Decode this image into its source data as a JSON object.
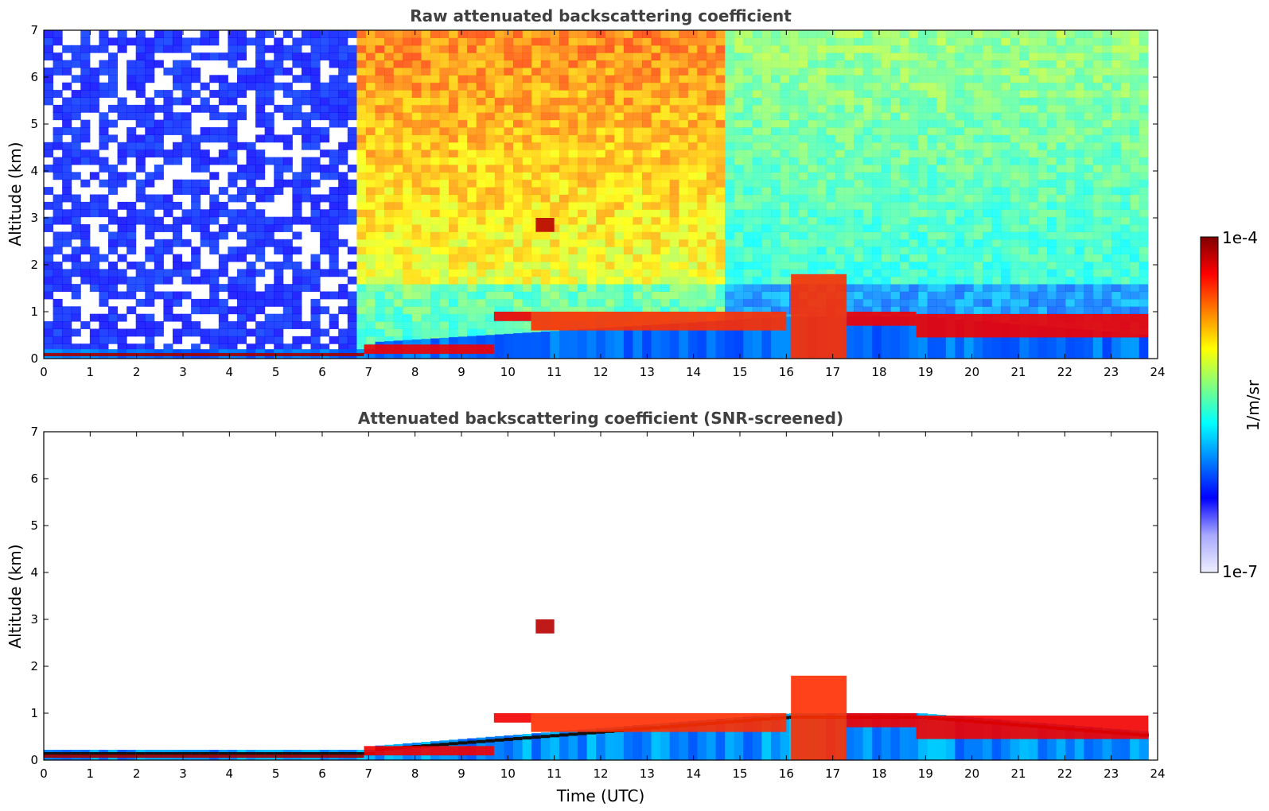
{
  "chart_data": [
    {
      "type": "heatmap",
      "title": "Raw attenuated backscattering coefficient",
      "xlabel": "",
      "ylabel": "Altitude (km)",
      "xlim": [
        0,
        24
      ],
      "ylim": [
        0,
        7
      ],
      "xticks": [
        "0",
        "1",
        "2",
        "3",
        "4",
        "5",
        "6",
        "7",
        "8",
        "9",
        "10",
        "11",
        "12",
        "13",
        "14",
        "15",
        "16",
        "17",
        "18",
        "19",
        "20",
        "21",
        "22",
        "23",
        "24"
      ],
      "yticks": [
        "0",
        "1",
        "2",
        "3",
        "4",
        "5",
        "6",
        "7"
      ],
      "data_end_hour": 23.8,
      "layers": [
        {
          "x": [
            0,
            6.9
          ],
          "y": [
            0.05,
            0.12
          ],
          "level": 0.97
        },
        {
          "x": [
            6.9,
            9.7
          ],
          "y": [
            0.1,
            0.3
          ],
          "level": 0.9
        },
        {
          "x": [
            9.7,
            10.5
          ],
          "y": [
            0.8,
            1.0
          ],
          "level": 0.9
        },
        {
          "x": [
            10.5,
            16.0
          ],
          "y": [
            0.6,
            1.0
          ],
          "level": 0.85
        },
        {
          "x": [
            16.1,
            17.3
          ],
          "y": [
            0.0,
            1.8
          ],
          "level": 0.85
        },
        {
          "x": [
            17.3,
            18.8
          ],
          "y": [
            0.7,
            1.0
          ],
          "level": 0.9
        },
        {
          "x": [
            18.8,
            23.8
          ],
          "y": [
            0.45,
            0.95
          ],
          "level": 0.9
        },
        {
          "x": [
            10.6,
            11.0
          ],
          "y": [
            2.7,
            3.0
          ],
          "level": 0.95
        }
      ]
    },
    {
      "type": "heatmap",
      "title": "Attenuated backscattering coefficient (SNR-screened)",
      "xlabel": "Time (UTC)",
      "ylabel": "Altitude (km)",
      "xlim": [
        0,
        24
      ],
      "ylim": [
        0,
        7
      ],
      "xticks": [
        "0",
        "1",
        "2",
        "3",
        "4",
        "5",
        "6",
        "7",
        "8",
        "9",
        "10",
        "11",
        "12",
        "13",
        "14",
        "15",
        "16",
        "17",
        "18",
        "19",
        "20",
        "21",
        "22",
        "23",
        "24"
      ],
      "yticks": [
        "0",
        "1",
        "2",
        "3",
        "4",
        "5",
        "6",
        "7"
      ],
      "data_end_hour": 23.8
    }
  ],
  "colorbar": {
    "label": "1/m/sr",
    "max_label": "1e-4",
    "min_label": "1e-7",
    "colors": [
      "#eeeeff",
      "#a8a8ff",
      "#0000ff",
      "#0080ff",
      "#00ffff",
      "#80ff80",
      "#ffff00",
      "#ff8000",
      "#ff0000",
      "#800000"
    ]
  }
}
